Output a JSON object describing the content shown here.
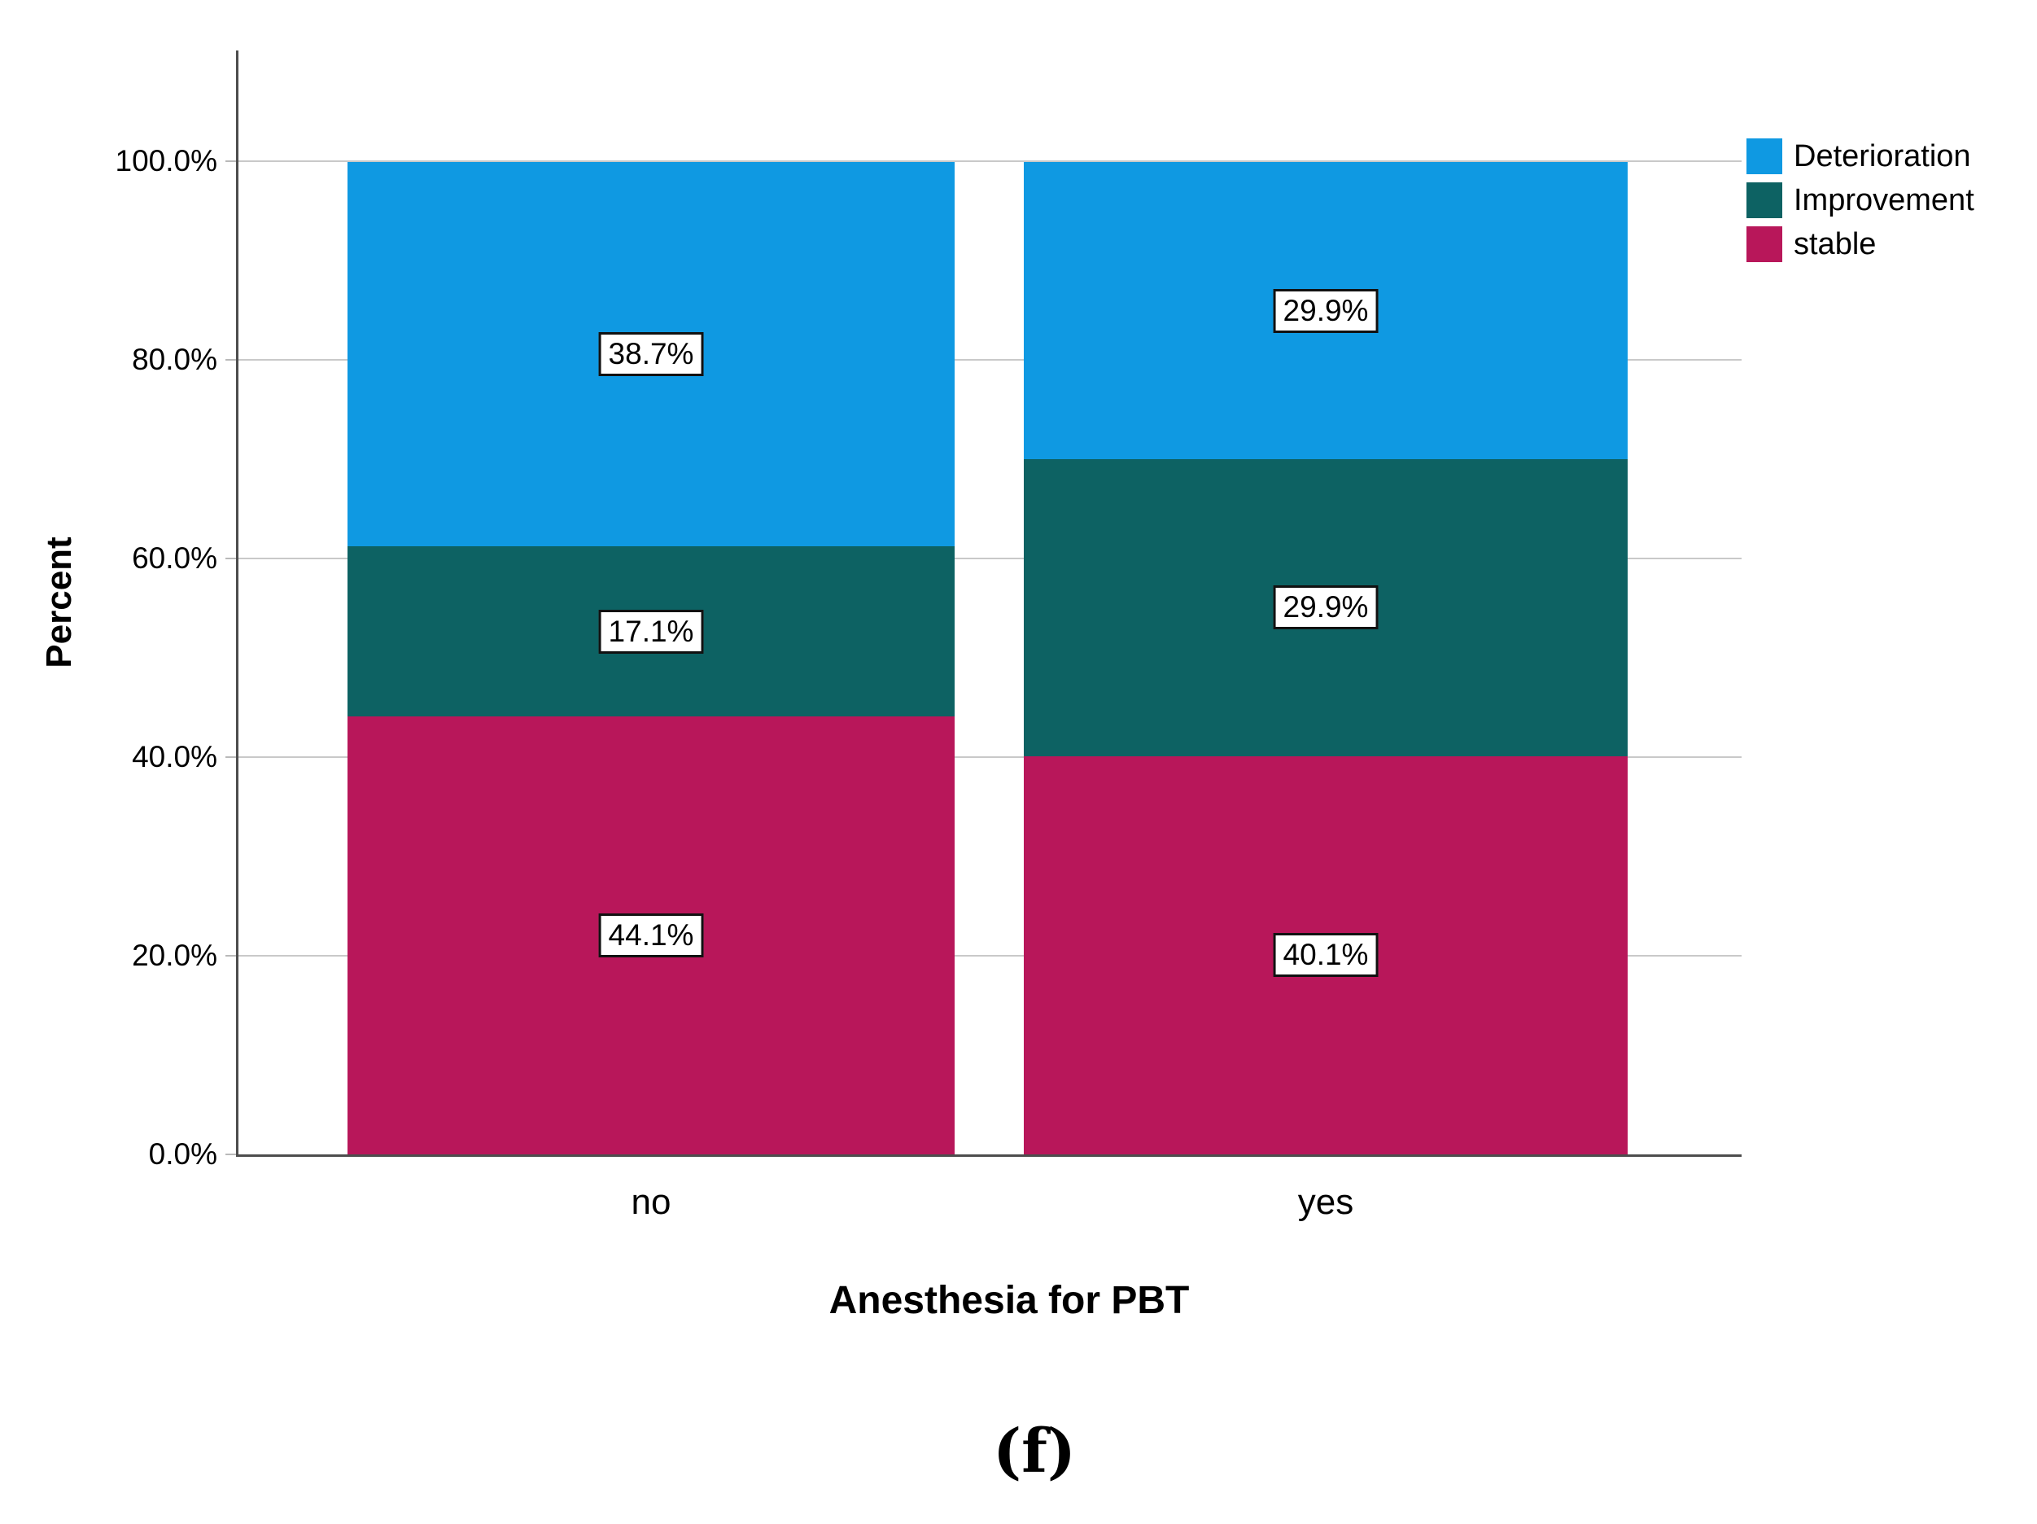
{
  "chart_data": {
    "type": "bar",
    "stacked": true,
    "orientation": "vertical",
    "title": "",
    "xlabel": "Anesthesia for PBT",
    "ylabel": "Percent",
    "caption": "(f)",
    "categories": [
      "no",
      "yes"
    ],
    "series": [
      {
        "name": "stable",
        "color": "#b8175a",
        "values": [
          44.1,
          40.1
        ],
        "labels": [
          "44.1%",
          "40.1%"
        ]
      },
      {
        "name": "Improvement",
        "color": "#0d6263",
        "values": [
          17.1,
          29.9
        ],
        "labels": [
          "17.1%",
          "29.9%"
        ]
      },
      {
        "name": "Deterioration",
        "color": "#0f99e2",
        "values": [
          38.7,
          29.9
        ],
        "labels": [
          "38.7%",
          "29.9%"
        ]
      }
    ],
    "ylim": [
      0,
      100
    ],
    "yticks": [
      {
        "label": "0.0%",
        "value": 0
      },
      {
        "label": "20.0%",
        "value": 20
      },
      {
        "label": "40.0%",
        "value": 40
      },
      {
        "label": "60.0%",
        "value": 60
      },
      {
        "label": "80.0%",
        "value": 80
      },
      {
        "label": "100.0%",
        "value": 100
      }
    ],
    "grid": true,
    "legend": {
      "position": "top-right",
      "entries": [
        {
          "label": "Deterioration",
          "color": "#0f99e2"
        },
        {
          "label": "Improvement",
          "color": "#0d6263"
        },
        {
          "label": "stable",
          "color": "#b8175a"
        }
      ]
    }
  },
  "colors": {
    "background": "#ffffff",
    "axis": "#4d4d4d",
    "grid": "#c9c9c9",
    "label_box_border": "#111111",
    "text": "#000000"
  }
}
